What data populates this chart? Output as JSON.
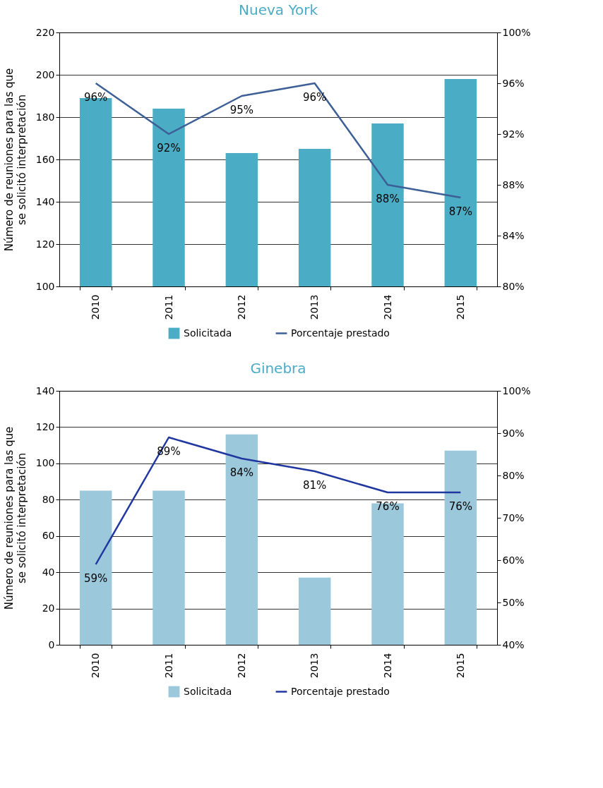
{
  "chart_data": [
    {
      "type": "bar",
      "title": "Nueva York",
      "ylabel": "Número de reuniones para las que\nse solicitó interpretación",
      "categories": [
        "2010",
        "2011",
        "2012",
        "2013",
        "2014",
        "2015"
      ],
      "series": [
        {
          "name": "Solicitada",
          "type": "bar",
          "color": "#4bacc6",
          "values": [
            189,
            184,
            163,
            165,
            177,
            198
          ]
        },
        {
          "name": "Porcentaje prestado",
          "type": "line",
          "axis": "y2",
          "color": "#3c5f96",
          "values": [
            96,
            92,
            95,
            96,
            88,
            87
          ],
          "value_labels": [
            "96%",
            "92%",
            "95%",
            "96%",
            "88%",
            "87%"
          ]
        }
      ],
      "ylim": [
        100,
        220
      ],
      "yticks": [
        100,
        120,
        140,
        160,
        180,
        200,
        220
      ],
      "y2lim": [
        80,
        100
      ],
      "y2ticks": [
        {
          "value": 80,
          "label": "80%"
        },
        {
          "value": 84,
          "label": "84%"
        },
        {
          "value": 88,
          "label": "88%"
        },
        {
          "value": 92,
          "label": "92%"
        },
        {
          "value": 96,
          "label": "96%"
        },
        {
          "value": 100,
          "label": "100%"
        }
      ],
      "grid": "y",
      "legend": "bottom"
    },
    {
      "type": "bar",
      "title": "Ginebra",
      "ylabel": "Número de reuniones para las que\nse solicitó interpretación",
      "categories": [
        "2010",
        "2011",
        "2012",
        "2013",
        "2014",
        "2015"
      ],
      "series": [
        {
          "name": "Solicitada",
          "type": "bar",
          "color": "#9bc8da",
          "values": [
            85,
            85,
            116,
            37,
            78,
            107
          ]
        },
        {
          "name": "Porcentaje prestado",
          "type": "line",
          "axis": "y2",
          "color": "#2137a0",
          "values": [
            59,
            89,
            84,
            81,
            76,
            76
          ],
          "value_labels": [
            "59%",
            "89%",
            "84%",
            "81%",
            "76%",
            "76%"
          ]
        }
      ],
      "ylim": [
        0,
        140
      ],
      "yticks": [
        0,
        20,
        40,
        60,
        80,
        100,
        120,
        140
      ],
      "y2lim": [
        40,
        100
      ],
      "y2ticks": [
        {
          "value": 40,
          "label": "40%"
        },
        {
          "value": 50,
          "label": "50%"
        },
        {
          "value": 60,
          "label": "60%"
        },
        {
          "value": 70,
          "label": "70%"
        },
        {
          "value": 80,
          "label": "80%"
        },
        {
          "value": 90,
          "label": "90%"
        },
        {
          "value": 100,
          "label": "100%"
        }
      ],
      "grid": "y",
      "legend": "bottom"
    }
  ]
}
